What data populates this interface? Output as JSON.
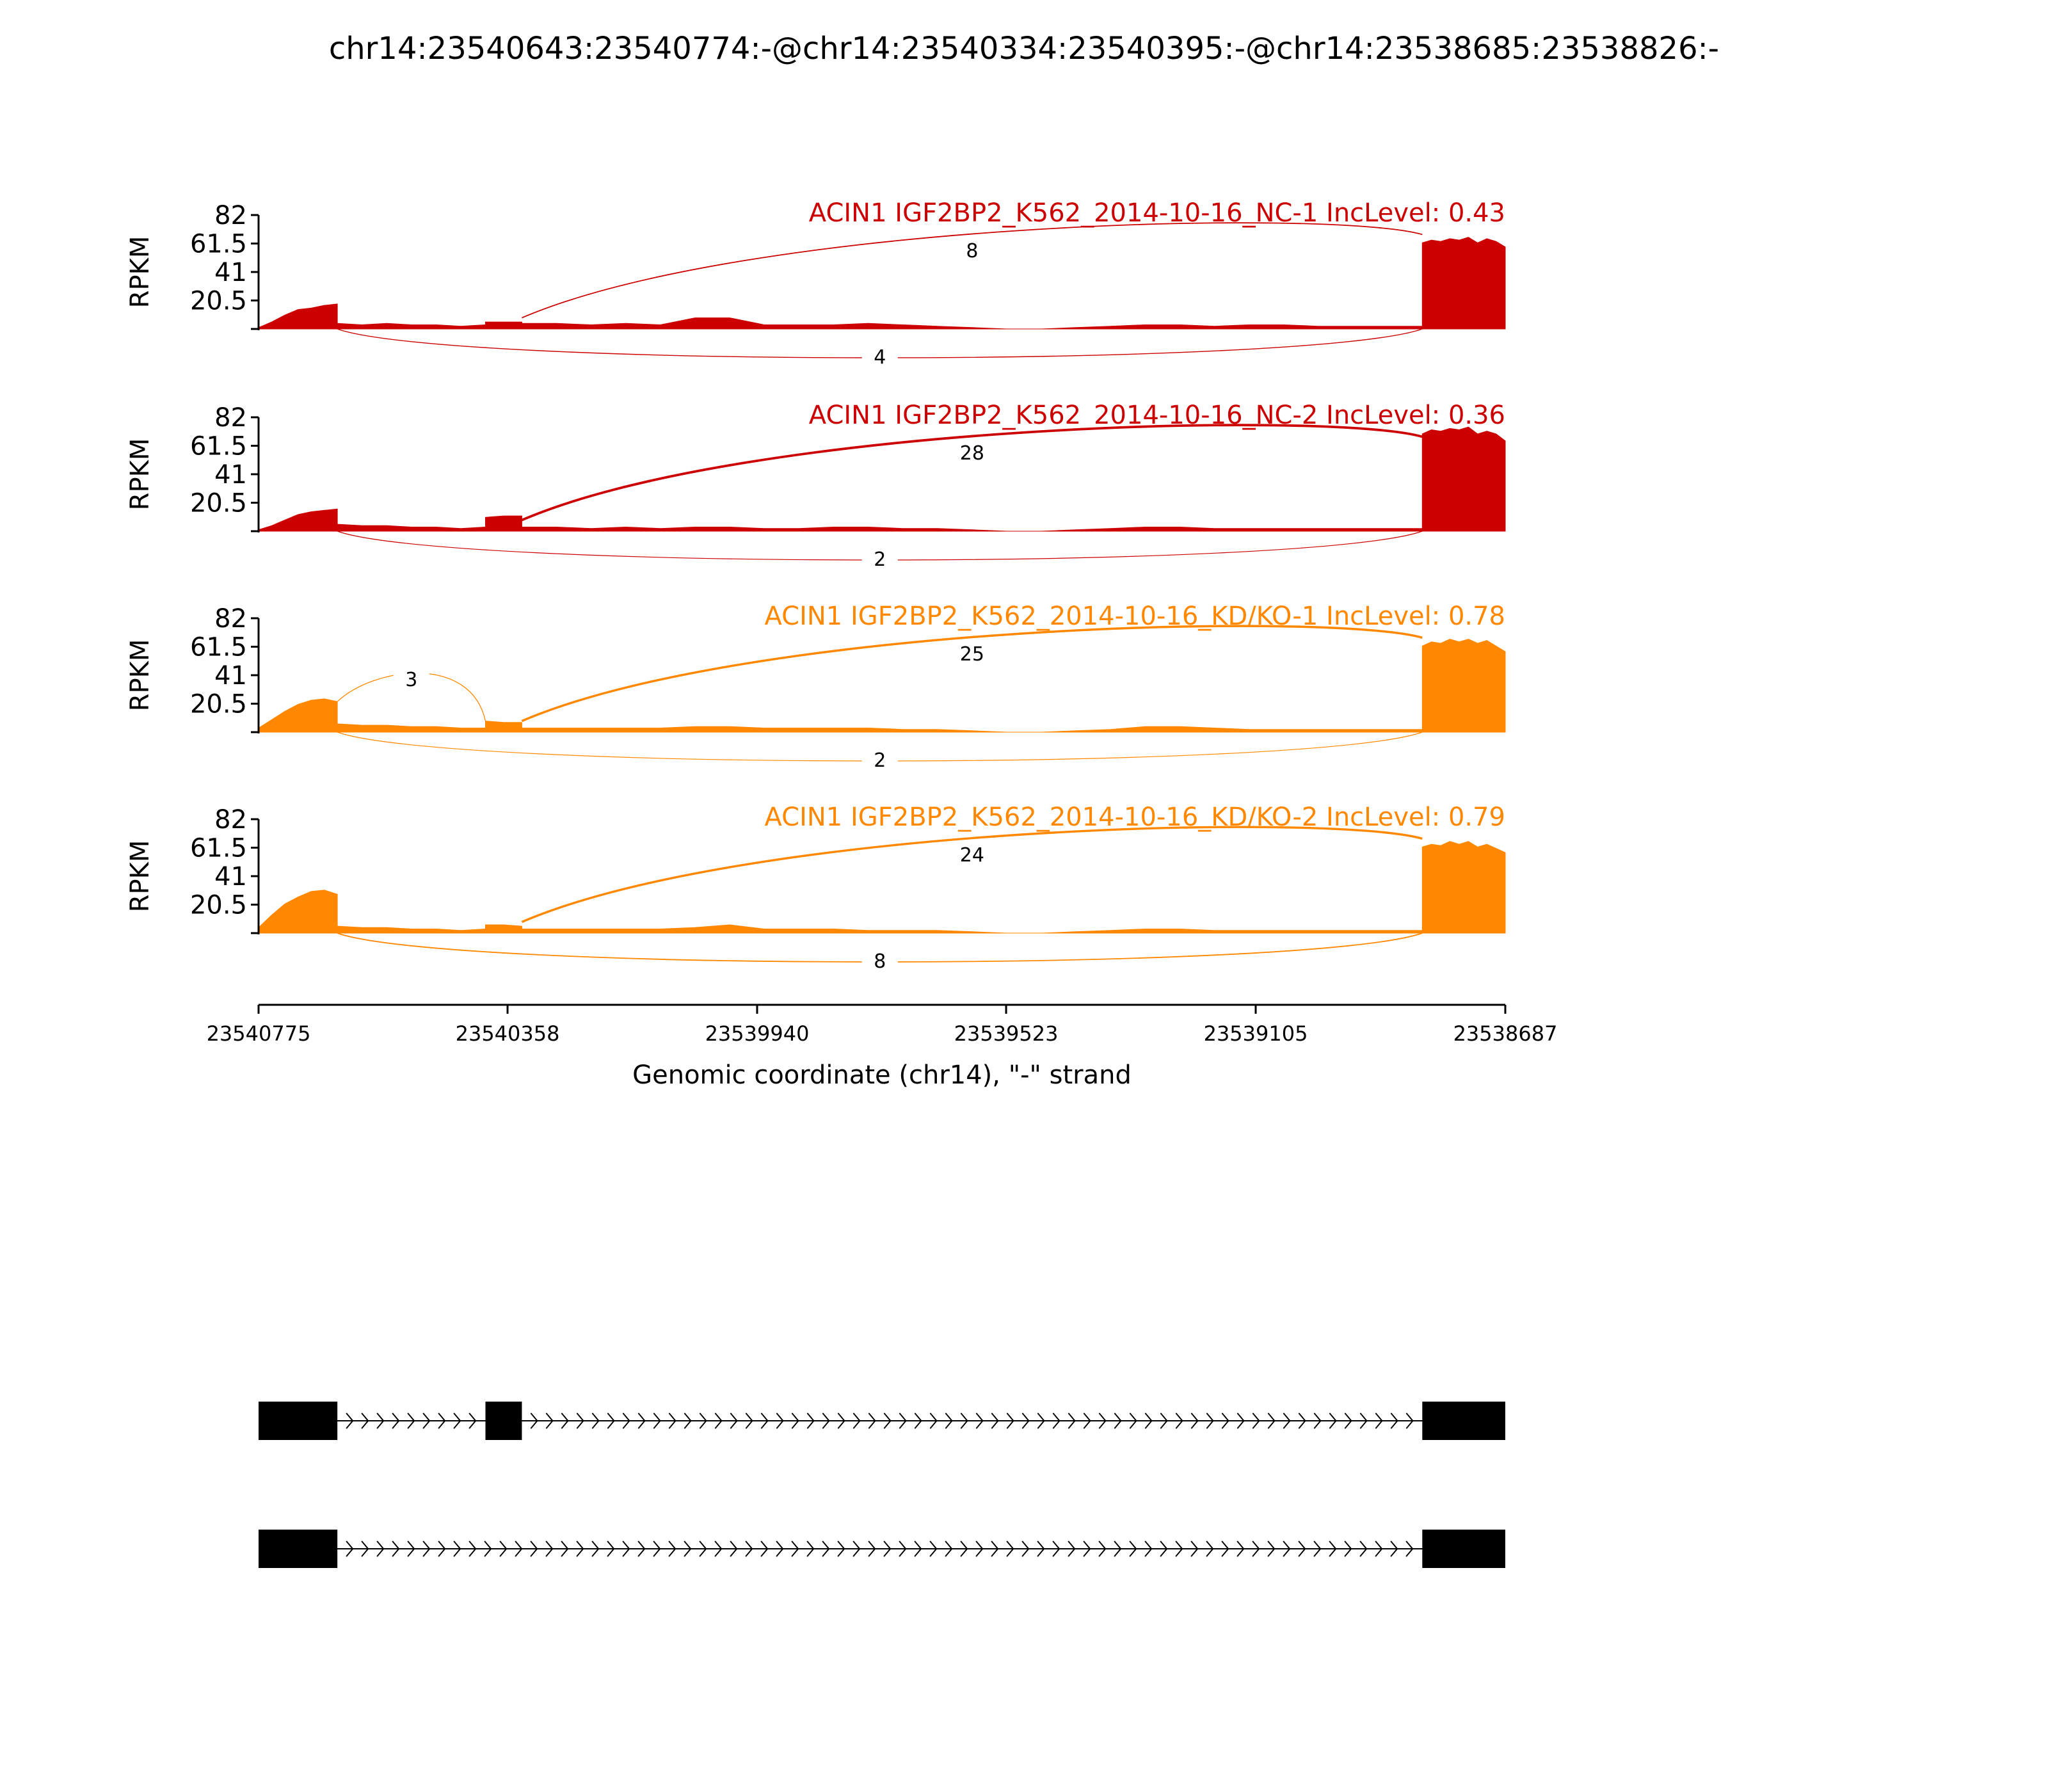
{
  "figure": {
    "title": "chr14:23540643:23540774:-@chr14:23540334:23540395:-@chr14:23538685:23538826:-",
    "xlabel": "Genomic coordinate (chr14), \"-\" strand",
    "ylabel": "RPKM"
  },
  "chart_data": {
    "type": "area",
    "title": "chr14:23540643:23540774:-@chr14:23540334:23540395:-@chr14:23538685:23538826:-",
    "xlabel": "Genomic coordinate (chr14), \"-\" strand",
    "ylabel": "RPKM",
    "x_reversed": true,
    "xlim": [
      23540775,
      23538687
    ],
    "x_ticks": [
      "23540775",
      "23540358",
      "23539940",
      "23539523",
      "23539105",
      "23538687"
    ],
    "ylim": [
      0,
      82
    ],
    "y_ticks": [
      "20.5",
      "41",
      "61.5",
      "82"
    ],
    "colors": {
      "NC": "#cc0000",
      "KD": "#ff8800"
    },
    "exons": [
      {
        "name": "exon-upstream",
        "start": 23540775,
        "end": 23540643
      },
      {
        "name": "exon-skipped",
        "start": 23540395,
        "end": 23540334
      },
      {
        "name": "exon-downstream",
        "start": 23538826,
        "end": 23538687
      }
    ],
    "series": [
      {
        "name": "ACIN1 IGF2BP2_K562_2014-10-16_NC-1 IncLevel: 0.43",
        "color": "#cc0000",
        "coverage": {
          "exon-upstream": [
            1,
            5,
            10,
            14,
            15,
            17,
            18
          ],
          "intron-1": [
            4,
            3,
            4,
            3,
            3,
            2,
            3
          ],
          "exon-skipped": [
            5,
            5,
            5
          ],
          "intron-2": [
            4,
            4,
            3,
            4,
            3,
            8,
            8,
            3,
            3,
            3,
            4,
            3,
            2,
            1,
            0,
            0,
            1,
            2,
            3,
            3,
            2,
            3,
            3,
            2,
            2,
            2,
            2
          ],
          "exon-downstream": [
            62,
            64,
            63,
            65,
            64,
            66,
            62,
            65,
            63,
            59
          ]
        },
        "junctions": [
          {
            "from": 23540334,
            "to": 23538826,
            "count": "8",
            "side": "above"
          },
          {
            "from": 23540643,
            "to": 23538826,
            "count": "4",
            "side": "below"
          }
        ]
      },
      {
        "name": "ACIN1 IGF2BP2_K562_2014-10-16_NC-2 IncLevel: 0.36",
        "color": "#cc0000",
        "coverage": {
          "exon-upstream": [
            1,
            4,
            8,
            12,
            14,
            15,
            16
          ],
          "intron-1": [
            5,
            4,
            4,
            3,
            3,
            2,
            3
          ],
          "exon-skipped": [
            10,
            11,
            11
          ],
          "intron-2": [
            3,
            3,
            2,
            3,
            2,
            3,
            3,
            2,
            2,
            3,
            3,
            2,
            2,
            1,
            0,
            0,
            1,
            2,
            3,
            3,
            2,
            2,
            2,
            2,
            2,
            2,
            2
          ],
          "exon-downstream": [
            70,
            73,
            72,
            74,
            73,
            75,
            70,
            72,
            70,
            65
          ]
        },
        "junctions": [
          {
            "from": 23540334,
            "to": 23538826,
            "count": "28",
            "side": "above"
          },
          {
            "from": 23540643,
            "to": 23538826,
            "count": "2",
            "side": "below"
          }
        ]
      },
      {
        "name": "ACIN1 IGF2BP2_K562_2014-10-16_KD/KO-1 IncLevel: 0.78",
        "color": "#ff8800",
        "coverage": {
          "exon-upstream": [
            3,
            9,
            15,
            20,
            23,
            24,
            22
          ],
          "intron-1": [
            6,
            5,
            5,
            4,
            4,
            3,
            3
          ],
          "exon-skipped": [
            8,
            7,
            7
          ],
          "intron-2": [
            3,
            3,
            3,
            3,
            3,
            4,
            4,
            3,
            3,
            3,
            3,
            2,
            2,
            1,
            0,
            0,
            1,
            2,
            4,
            4,
            3,
            2,
            2,
            2,
            2,
            2,
            2
          ],
          "exon-downstream": [
            62,
            65,
            64,
            67,
            65,
            67,
            64,
            66,
            62,
            58
          ]
        },
        "junctions": [
          {
            "from": 23540643,
            "to": 23540395,
            "count": "3",
            "side": "above"
          },
          {
            "from": 23540334,
            "to": 23538826,
            "count": "25",
            "side": "above"
          },
          {
            "from": 23540643,
            "to": 23538826,
            "count": "2",
            "side": "below"
          }
        ]
      },
      {
        "name": "ACIN1 IGF2BP2_K562_2014-10-16_KD/KO-2 IncLevel: 0.79",
        "color": "#ff8800",
        "coverage": {
          "exon-upstream": [
            4,
            13,
            21,
            26,
            30,
            31,
            28
          ],
          "intron-1": [
            5,
            4,
            4,
            3,
            3,
            2,
            3
          ],
          "exon-skipped": [
            6,
            6,
            5
          ],
          "intron-2": [
            3,
            3,
            3,
            3,
            3,
            4,
            6,
            3,
            3,
            3,
            2,
            2,
            2,
            1,
            0,
            0,
            1,
            2,
            3,
            3,
            2,
            2,
            2,
            2,
            2,
            2,
            2
          ],
          "exon-downstream": [
            62,
            64,
            63,
            66,
            64,
            66,
            62,
            64,
            61,
            58
          ]
        },
        "junctions": [
          {
            "from": 23540334,
            "to": 23538826,
            "count": "24",
            "side": "above"
          },
          {
            "from": 23540643,
            "to": 23538826,
            "count": "8",
            "side": "below"
          }
        ]
      }
    ],
    "isoforms": [
      {
        "exons": [
          "exon-upstream",
          "exon-skipped",
          "exon-downstream"
        ]
      },
      {
        "exons": [
          "exon-upstream",
          "exon-downstream"
        ]
      }
    ]
  }
}
